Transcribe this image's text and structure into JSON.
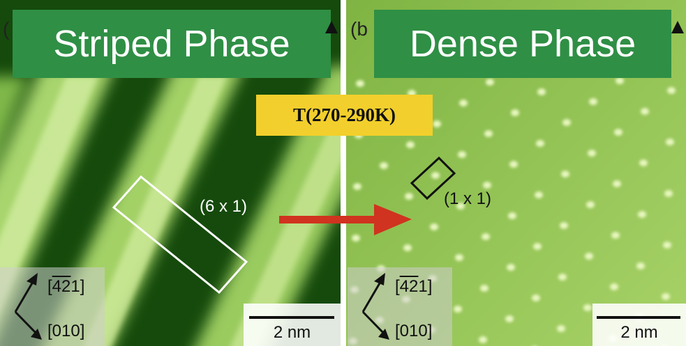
{
  "panels": [
    {
      "letter": "(",
      "title": "Striped Phase",
      "cell_label": "(6 x 1)",
      "direction_top": {
        "pre": "[",
        "bar1": "4",
        "bar2": "2",
        "post": "1]"
      },
      "direction_bottom": "[010]",
      "scale_label": "2 nm"
    },
    {
      "letter": "(b",
      "title": "Dense Phase",
      "cell_label": "(1 x 1)",
      "direction_top": {
        "pre": "[",
        "bar1": "4",
        "bar2": "2",
        "post": "1]"
      },
      "direction_bottom": "[010]",
      "scale_label": "2 nm"
    }
  ],
  "transition_label": "T(270-290K)",
  "colors": {
    "title_bg": "#2f8f45",
    "label_bg": "#f2cf2c",
    "arrow": "#d0331f",
    "stripe_bright": "#c7e88e",
    "stripe_dark": "#0f3d08",
    "dense_bg": "#9cc95a",
    "dense_dot": "#e4f5b8"
  }
}
